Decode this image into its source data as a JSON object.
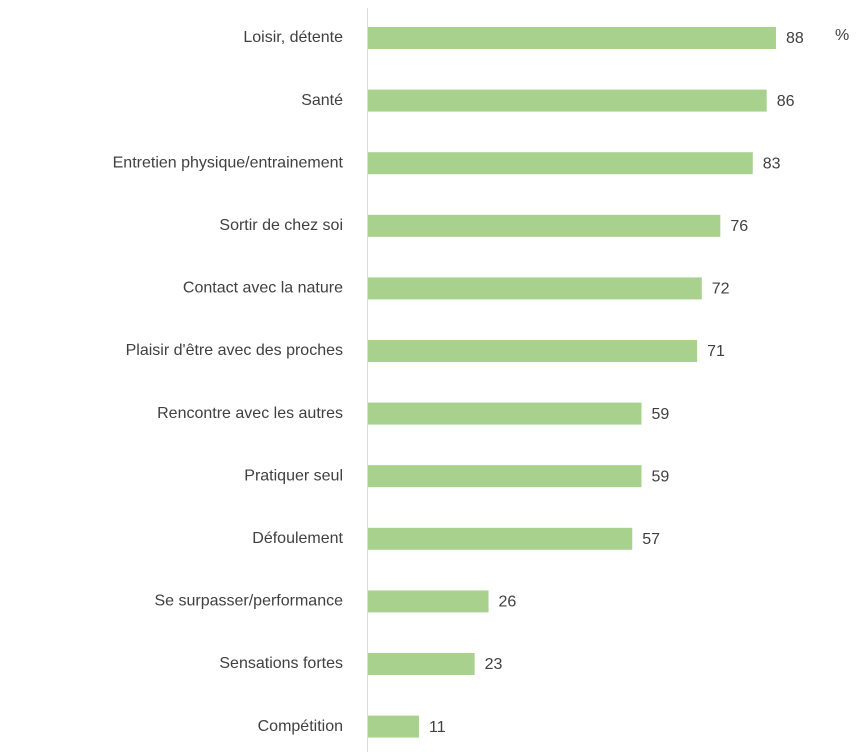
{
  "chart_data": {
    "type": "bar",
    "orientation": "horizontal",
    "unit": "%",
    "categories": [
      "Loisir, détente",
      "Santé",
      "Entretien physique/entrainement",
      "Sortir de chez soi",
      "Contact avec la nature",
      "Plaisir d'être avec des proches",
      "Rencontre avec les autres",
      "Pratiquer seul",
      "Défoulement",
      "Se surpasser/performance",
      "Sensations fortes",
      "Compétition"
    ],
    "values": [
      88,
      86,
      83,
      76,
      72,
      71,
      59,
      59,
      57,
      26,
      23,
      11
    ],
    "color": "#a9d18e"
  }
}
